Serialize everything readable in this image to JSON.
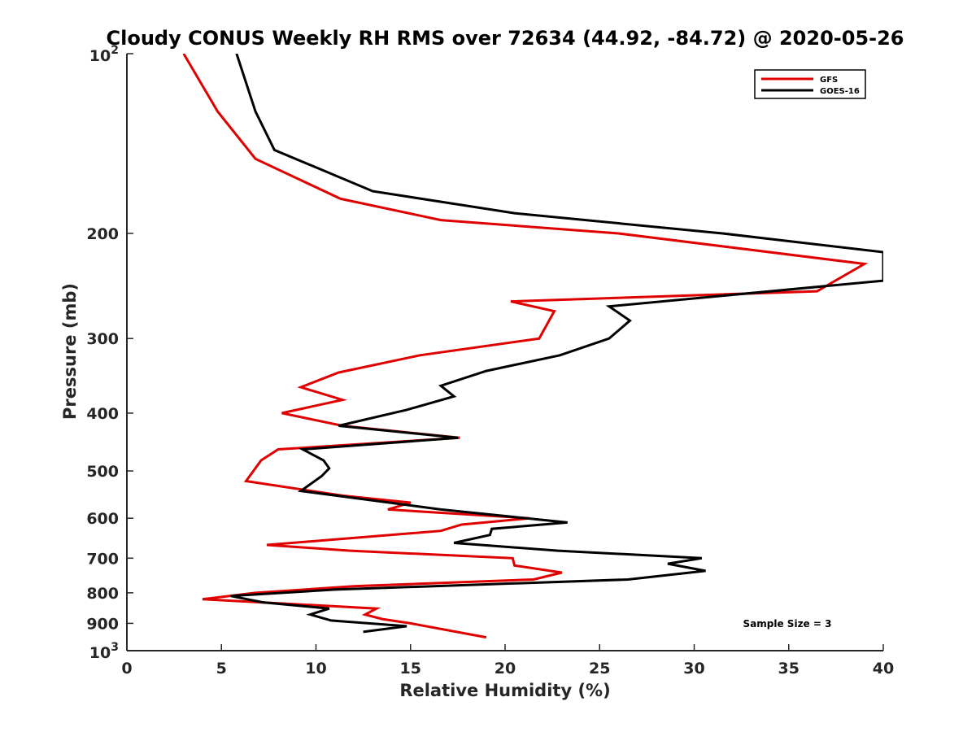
{
  "chart_data": {
    "type": "line",
    "title": "Cloudy CONUS Weekly RH RMS over 72634 (44.92, -84.72) @ 2020-05-26",
    "xlabel": "Relative Humidity (%)",
    "ylabel": "Pressure (mb)",
    "xlim": [
      0,
      40
    ],
    "ylim": [
      100,
      1000
    ],
    "y_scale": "log",
    "y_reversed": true,
    "grid": false,
    "legend_position": "top-right",
    "x_ticks": [
      "0",
      "5",
      "10",
      "15",
      "20",
      "25",
      "30",
      "35",
      "40"
    ],
    "y_ticks": [
      {
        "value": 100,
        "base": "10",
        "exp": "2"
      },
      {
        "value": 200,
        "label": "200"
      },
      {
        "value": 300,
        "label": "300"
      },
      {
        "value": 400,
        "label": "400"
      },
      {
        "value": 500,
        "label": "500"
      },
      {
        "value": 600,
        "label": "600"
      },
      {
        "value": 700,
        "label": "700"
      },
      {
        "value": 800,
        "label": "800"
      },
      {
        "value": 900,
        "label": "900"
      },
      {
        "value": 1000,
        "base": "10",
        "exp": "3"
      }
    ],
    "series": [
      {
        "name": "GFS",
        "color": "#e00000",
        "points": [
          [
            3.0,
            100
          ],
          [
            4.8,
            125
          ],
          [
            6.8,
            150
          ],
          [
            11.3,
            175
          ],
          [
            16.6,
            190
          ],
          [
            26.0,
            200
          ],
          [
            39.0,
            225
          ],
          [
            36.5,
            250
          ],
          [
            20.3,
            260
          ],
          [
            22.6,
            270
          ],
          [
            21.8,
            300
          ],
          [
            15.5,
            320
          ],
          [
            11.2,
            342
          ],
          [
            9.2,
            362
          ],
          [
            11.4,
            380
          ],
          [
            8.2,
            400
          ],
          [
            11.4,
            420
          ],
          [
            17.6,
            440
          ],
          [
            8.0,
            460
          ],
          [
            7.1,
            480
          ],
          [
            6.3,
            520
          ],
          [
            11.4,
            550
          ],
          [
            15.0,
            565
          ],
          [
            13.8,
            580
          ],
          [
            21.3,
            600
          ],
          [
            17.7,
            615
          ],
          [
            16.6,
            630
          ],
          [
            7.4,
            665
          ],
          [
            11.8,
            680
          ],
          [
            20.4,
            700
          ],
          [
            20.5,
            720
          ],
          [
            23.0,
            740
          ],
          [
            21.5,
            760
          ],
          [
            12.0,
            780
          ],
          [
            6.8,
            800
          ],
          [
            4.0,
            820
          ],
          [
            13.2,
            850
          ],
          [
            12.6,
            870
          ],
          [
            13.5,
            885
          ],
          [
            15.0,
            900
          ],
          [
            19.0,
            950
          ]
        ]
      },
      {
        "name": "GOES-16",
        "color": "#000000",
        "points": [
          [
            5.8,
            100
          ],
          [
            6.8,
            125
          ],
          [
            7.8,
            145
          ],
          [
            13.0,
            170
          ],
          [
            20.5,
            185
          ],
          [
            31.5,
            200
          ],
          [
            40.0,
            215
          ],
          [
            40.0,
            240
          ],
          [
            25.5,
            265
          ],
          [
            26.6,
            280
          ],
          [
            25.5,
            300
          ],
          [
            22.9,
            320
          ],
          [
            19.0,
            340
          ],
          [
            16.6,
            360
          ],
          [
            17.3,
            375
          ],
          [
            14.8,
            395
          ],
          [
            11.2,
            420
          ],
          [
            17.5,
            440
          ],
          [
            9.3,
            460
          ],
          [
            10.4,
            480
          ],
          [
            10.7,
            495
          ],
          [
            10.3,
            510
          ],
          [
            9.2,
            540
          ],
          [
            16.6,
            580
          ],
          [
            23.3,
            610
          ],
          [
            19.3,
            625
          ],
          [
            19.2,
            640
          ],
          [
            17.3,
            660
          ],
          [
            22.8,
            680
          ],
          [
            30.4,
            700
          ],
          [
            28.6,
            715
          ],
          [
            30.6,
            735
          ],
          [
            26.5,
            760
          ],
          [
            11.0,
            790
          ],
          [
            5.5,
            810
          ],
          [
            7.2,
            830
          ],
          [
            10.7,
            850
          ],
          [
            9.7,
            870
          ],
          [
            10.8,
            890
          ],
          [
            14.8,
            910
          ],
          [
            12.5,
            930
          ]
        ]
      }
    ],
    "annotation": "Sample Size = 3"
  }
}
